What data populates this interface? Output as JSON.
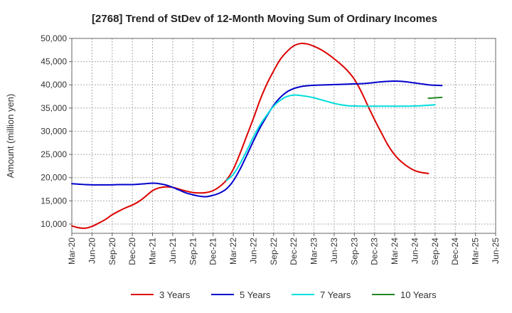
{
  "chart_data": {
    "type": "line",
    "title": "[2768]  Trend of StDev of 12-Month Moving Sum of Ordinary Incomes",
    "xlabel": "",
    "ylabel": "Amount (million yen)",
    "ylim": [
      8000,
      50000
    ],
    "yticks": [
      10000,
      15000,
      20000,
      25000,
      30000,
      35000,
      40000,
      45000,
      50000
    ],
    "ytick_labels": [
      "10,000",
      "15,000",
      "20,000",
      "25,000",
      "30,000",
      "35,000",
      "40,000",
      "45,000",
      "50,000"
    ],
    "xticks": [
      "Mar-20",
      "Jun-20",
      "Sep-20",
      "Dec-20",
      "Mar-21",
      "Jun-21",
      "Sep-21",
      "Dec-21",
      "Mar-22",
      "Jun-22",
      "Sep-22",
      "Dec-22",
      "Mar-23",
      "Jun-23",
      "Sep-23",
      "Dec-23",
      "Mar-24",
      "Jun-24",
      "Sep-24",
      "Dec-24",
      "Mar-25",
      "Jun-25"
    ],
    "grid": true,
    "legend_position": "bottom",
    "series": [
      {
        "name": "3 Years",
        "color": "#dd0000",
        "points": [
          [
            0,
            9600
          ],
          [
            1,
            9200
          ],
          [
            2,
            9100
          ],
          [
            3,
            9500
          ],
          [
            4,
            10200
          ],
          [
            5,
            11000
          ],
          [
            6,
            12000
          ],
          [
            7,
            12800
          ],
          [
            8,
            13500
          ],
          [
            9,
            14100
          ],
          [
            10,
            14900
          ],
          [
            11,
            16000
          ],
          [
            12,
            17200
          ],
          [
            13,
            17800
          ],
          [
            14,
            18000
          ],
          [
            15,
            17900
          ],
          [
            16,
            17500
          ],
          [
            17,
            17100
          ],
          [
            18,
            16800
          ],
          [
            19,
            16700
          ],
          [
            20,
            16800
          ],
          [
            21,
            17200
          ],
          [
            22,
            18100
          ],
          [
            23,
            19500
          ],
          [
            24,
            21800
          ],
          [
            25,
            25200
          ],
          [
            26,
            29000
          ],
          [
            27,
            32800
          ],
          [
            28,
            36800
          ],
          [
            29,
            40200
          ],
          [
            30,
            43000
          ],
          [
            31,
            45500
          ],
          [
            32,
            47200
          ],
          [
            33,
            48400
          ],
          [
            34,
            48900
          ],
          [
            35,
            48800
          ],
          [
            36,
            48300
          ],
          [
            37,
            47600
          ],
          [
            38,
            46700
          ],
          [
            39,
            45600
          ],
          [
            40,
            44400
          ],
          [
            41,
            43000
          ],
          [
            42,
            41200
          ],
          [
            43,
            38600
          ],
          [
            44,
            35500
          ],
          [
            45,
            32500
          ],
          [
            46,
            29700
          ],
          [
            47,
            27000
          ],
          [
            48,
            24900
          ],
          [
            49,
            23400
          ],
          [
            50,
            22300
          ],
          [
            51,
            21500
          ],
          [
            52,
            21100
          ],
          [
            53,
            20900
          ]
        ]
      },
      {
        "name": "5 Years",
        "color": "#0000cc",
        "points": [
          [
            0,
            18700
          ],
          [
            1,
            18600
          ],
          [
            2,
            18500
          ],
          [
            3,
            18450
          ],
          [
            4,
            18450
          ],
          [
            5,
            18450
          ],
          [
            6,
            18450
          ],
          [
            7,
            18500
          ],
          [
            8,
            18500
          ],
          [
            9,
            18500
          ],
          [
            10,
            18600
          ],
          [
            11,
            18700
          ],
          [
            12,
            18800
          ],
          [
            13,
            18700
          ],
          [
            14,
            18400
          ],
          [
            15,
            17900
          ],
          [
            16,
            17300
          ],
          [
            17,
            16700
          ],
          [
            18,
            16300
          ],
          [
            19,
            16000
          ],
          [
            20,
            15900
          ],
          [
            21,
            16200
          ],
          [
            22,
            16700
          ],
          [
            23,
            17600
          ],
          [
            24,
            19300
          ],
          [
            25,
            21800
          ],
          [
            26,
            24800
          ],
          [
            27,
            27900
          ],
          [
            28,
            30800
          ],
          [
            29,
            33300
          ],
          [
            30,
            35600
          ],
          [
            31,
            37300
          ],
          [
            32,
            38500
          ],
          [
            33,
            39200
          ],
          [
            34,
            39600
          ],
          [
            35,
            39800
          ],
          [
            36,
            39900
          ],
          [
            37,
            39950
          ],
          [
            38,
            40000
          ],
          [
            39,
            40050
          ],
          [
            40,
            40100
          ],
          [
            41,
            40150
          ],
          [
            42,
            40200
          ],
          [
            43,
            40250
          ],
          [
            44,
            40350
          ],
          [
            45,
            40500
          ],
          [
            46,
            40650
          ],
          [
            47,
            40750
          ],
          [
            48,
            40800
          ],
          [
            49,
            40750
          ],
          [
            50,
            40600
          ],
          [
            51,
            40400
          ],
          [
            52,
            40200
          ],
          [
            53,
            40000
          ],
          [
            54,
            39900
          ],
          [
            55,
            39850
          ]
        ]
      },
      {
        "name": "7 Years",
        "color": "#00dddd",
        "points": [
          [
            23,
            19400
          ],
          [
            24,
            20700
          ],
          [
            25,
            23000
          ],
          [
            26,
            25800
          ],
          [
            27,
            28800
          ],
          [
            28,
            31400
          ],
          [
            29,
            33500
          ],
          [
            30,
            35400
          ],
          [
            31,
            36700
          ],
          [
            32,
            37500
          ],
          [
            33,
            37800
          ],
          [
            34,
            37700
          ],
          [
            35,
            37500
          ],
          [
            36,
            37200
          ],
          [
            37,
            36800
          ],
          [
            38,
            36400
          ],
          [
            39,
            36000
          ],
          [
            40,
            35700
          ],
          [
            41,
            35500
          ],
          [
            42,
            35450
          ],
          [
            43,
            35400
          ],
          [
            44,
            35400
          ],
          [
            45,
            35400
          ],
          [
            46,
            35400
          ],
          [
            47,
            35400
          ],
          [
            48,
            35400
          ],
          [
            49,
            35400
          ],
          [
            50,
            35400
          ],
          [
            51,
            35450
          ],
          [
            52,
            35500
          ],
          [
            53,
            35600
          ],
          [
            54,
            35700
          ]
        ]
      },
      {
        "name": "10 Years",
        "color": "#228822",
        "points": [
          [
            53,
            37100
          ],
          [
            54,
            37200
          ],
          [
            55,
            37300
          ]
        ]
      }
    ]
  }
}
